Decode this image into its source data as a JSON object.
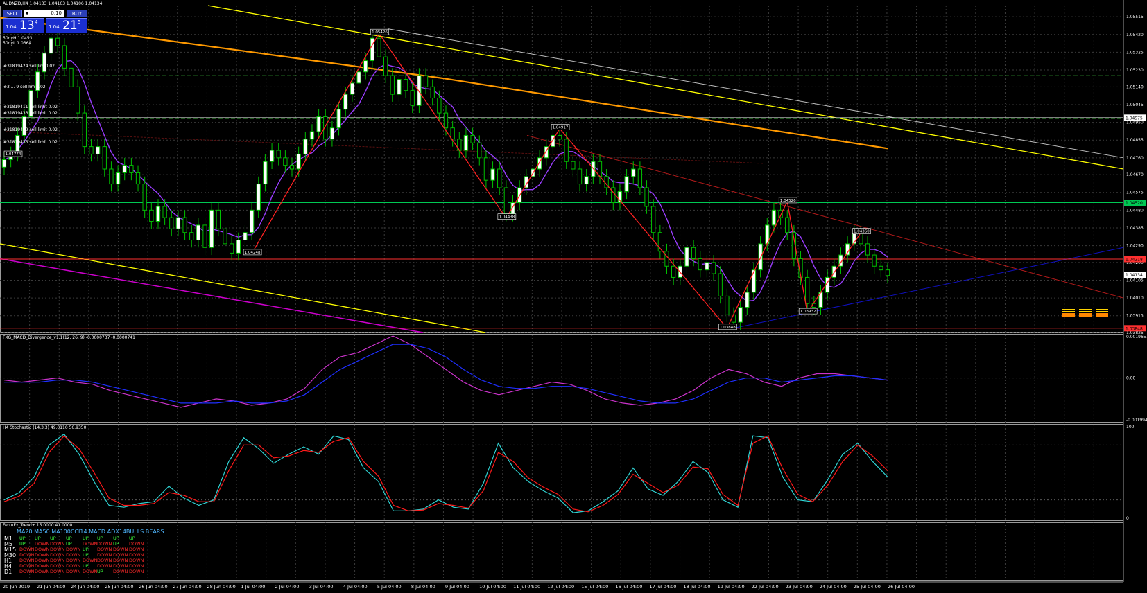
{
  "window": {
    "symbol_header": "AUDNZD,H4  1.04133 1.04163 1.04106 1.04134"
  },
  "trade_panel": {
    "sell_label": "SELL",
    "buy_label": "BUY",
    "lot_value": "0.10",
    "bid_prefix": "1.04",
    "bid_big": "13",
    "bid_sup": "4",
    "ask_prefix": "1.04",
    "ask_big": "21",
    "ask_sup": "5"
  },
  "top_left_labels": [
    "50dyH 1.0453",
    "50dyL 1.0364"
  ],
  "order_labels": [
    "#31819424 sell lim 0.02",
    "#3 ... 9 sell lim 0.02",
    "#31819411 sell limit 0.02",
    "#31819433 sell limit 0.02",
    "#31819409 sell limit 0.02",
    "#31819435 sell limit 0.02"
  ],
  "colors": {
    "bg": "#000000",
    "grid": "#3a3a3a",
    "bull": "#ffffff",
    "bear": "#00c000",
    "ma_orange": "#ff9900",
    "trend_yellow": "#ffff00",
    "trend_gray": "#bfbfbf",
    "zigzag": "#ff2222",
    "ma_purple": "#9a3dff",
    "channel_magenta": "#cc00cc",
    "macd_blue": "#1f2fff",
    "macd_magenta": "#cc33cc",
    "stoch_cyan": "#2fd3d3",
    "stoch_red": "#ff1a1a",
    "green_line": "#00c853",
    "current_price_red": "#ff3030",
    "blue_support": "#1010c0"
  },
  "chart_data": [
    {
      "type": "candlestick",
      "panel": "main",
      "title": "AUDNZD,H4",
      "ylim": [
        1.03825,
        1.05575
      ],
      "price_axis_ticks": [
        "1.05515",
        "1.05420",
        "1.05325",
        "1.05230",
        "1.05140",
        "1.05045",
        "1.04950",
        "1.04855",
        "1.04760",
        "1.04670",
        "1.04575",
        "1.04480",
        "1.04385",
        "1.04290",
        "1.04200",
        "1.04105",
        "1.04010",
        "1.03915",
        "1.03825"
      ],
      "price_tags": [
        {
          "value": 1.04975,
          "label": "1.04975",
          "color": "#ffffff"
        },
        {
          "value": 1.0452,
          "label": "1.04520",
          "color": "#00c853"
        },
        {
          "value": 1.04218,
          "label": "1.04218",
          "color": "#ff3030"
        },
        {
          "value": 1.04134,
          "label": "1.04134",
          "color": "#ffffff"
        },
        {
          "value": 1.03848,
          "label": "1.03848",
          "color": "#ff3030"
        }
      ],
      "swing_labels": [
        {
          "label": "1.04774",
          "x": 0.5,
          "y": 1.04774
        },
        {
          "label": "1.05426",
          "x": 56,
          "y": 1.05426
        },
        {
          "label": "1.04248",
          "x": 37,
          "y": 1.04248
        },
        {
          "label": "1.04917",
          "x": 83,
          "y": 1.04917
        },
        {
          "label": "1.04438",
          "x": 75,
          "y": 1.04438
        },
        {
          "label": "1.04526",
          "x": 117,
          "y": 1.04526
        },
        {
          "label": "1.03848",
          "x": 108,
          "y": 1.03848
        },
        {
          "label": "1.04360",
          "x": 128,
          "y": 1.0436
        },
        {
          "label": "1.03932",
          "x": 120,
          "y": 1.03932
        }
      ],
      "close_series": [
        1.0475,
        1.0478,
        1.0488,
        1.0498,
        1.0512,
        1.0522,
        1.0532,
        1.054,
        1.0536,
        1.0524,
        1.0514,
        1.05,
        1.0482,
        1.0478,
        1.0482,
        1.047,
        1.0462,
        1.0468,
        1.0472,
        1.0468,
        1.0462,
        1.0448,
        1.0442,
        1.045,
        1.0444,
        1.0438,
        1.0444,
        1.0436,
        1.0432,
        1.044,
        1.0428,
        1.0448,
        1.0438,
        1.043,
        1.0425,
        1.0432,
        1.0436,
        1.0448,
        1.0462,
        1.0474,
        1.048,
        1.0476,
        1.0472,
        1.047,
        1.0478,
        1.0486,
        1.049,
        1.0498,
        1.0486,
        1.0492,
        1.0502,
        1.051,
        1.0516,
        1.0522,
        1.0528,
        1.054,
        1.053,
        1.052,
        1.051,
        1.0518,
        1.0512,
        1.0504,
        1.052,
        1.0514,
        1.0508,
        1.05,
        1.0492,
        1.0486,
        1.048,
        1.0488,
        1.0484,
        1.0476,
        1.0464,
        1.047,
        1.046,
        1.0446,
        1.0452,
        1.046,
        1.0466,
        1.047,
        1.0476,
        1.0482,
        1.0488,
        1.0486,
        1.0474,
        1.047,
        1.0462,
        1.0466,
        1.0474,
        1.0466,
        1.046,
        1.0452,
        1.0458,
        1.0466,
        1.047,
        1.046,
        1.045,
        1.0436,
        1.0426,
        1.0418,
        1.0412,
        1.0418,
        1.0428,
        1.0422,
        1.0416,
        1.042,
        1.0414,
        1.0402,
        1.0392,
        1.0388,
        1.0396,
        1.0404,
        1.0416,
        1.043,
        1.044,
        1.0448,
        1.0444,
        1.0436,
        1.0422,
        1.0412,
        1.0398,
        1.0396,
        1.0404,
        1.0412,
        1.0418,
        1.0424,
        1.043,
        1.0436,
        1.043,
        1.0424,
        1.0418,
        1.0416,
        1.0413
      ]
    },
    {
      "type": "line",
      "panel": "macd",
      "title": "FXG_MACD_Divergence_v1.1(12, 26, 9) -0.0000737 -0.0000741",
      "ylim": [
        -0.0019944,
        0.0019657
      ],
      "tick_labels": [
        "0.0019657",
        "0.00",
        "-0.0019944"
      ],
      "series": [
        {
          "values": [
            -0.0001,
            -0.0002,
            -0.0001,
            0.0,
            -0.0002,
            -0.0003,
            -0.0006,
            -0.0008,
            -0.001,
            -0.0012,
            -0.0014,
            -0.0012,
            -0.001,
            -0.0011,
            -0.0013,
            -0.0012,
            -0.001,
            -0.0005,
            0.0004,
            0.001,
            0.0012,
            0.0016,
            0.002,
            0.0016,
            0.001,
            0.0004,
            -0.0002,
            -0.0006,
            -0.0008,
            -0.0006,
            -0.0004,
            -0.0002,
            -0.0003,
            -0.0006,
            -0.001,
            -0.0012,
            -0.0013,
            -0.0012,
            -0.001,
            -0.0006,
            0.0,
            0.0004,
            0.0002,
            -0.0002,
            -0.0004,
            0.0,
            0.0002,
            0.0002,
            0.0001,
            0.0,
            -0.0001
          ]
        },
        {
          "values": [
            -0.0002,
            -0.0002,
            -0.0002,
            -0.0001,
            -0.0001,
            -0.0002,
            -0.0004,
            -0.0006,
            -0.0008,
            -0.001,
            -0.0012,
            -0.0012,
            -0.0012,
            -0.0011,
            -0.0012,
            -0.0012,
            -0.0011,
            -0.0008,
            -0.0002,
            0.0004,
            0.0008,
            0.0012,
            0.0016,
            0.0016,
            0.0014,
            0.001,
            0.0004,
            -0.0001,
            -0.0004,
            -0.0005,
            -0.0005,
            -0.0004,
            -0.0004,
            -0.0005,
            -0.0007,
            -0.0009,
            -0.0011,
            -0.0012,
            -0.0012,
            -0.001,
            -0.0006,
            -0.0002,
            0.0,
            0.0,
            -0.0002,
            -0.0001,
            0.0,
            0.0001,
            0.0001,
            0.0,
            -0.0001
          ]
        }
      ]
    },
    {
      "type": "line",
      "panel": "stochastic",
      "title": "H4 Stochastic (14,3,3) 49.0110 56.9350",
      "ylim": [
        0,
        100
      ],
      "tick_labels": [
        "100",
        "0"
      ],
      "series": [
        {
          "values": [
            20,
            28,
            45,
            80,
            92,
            70,
            40,
            14,
            12,
            16,
            18,
            35,
            22,
            14,
            20,
            62,
            88,
            76,
            60,
            70,
            78,
            70,
            90,
            86,
            55,
            40,
            8,
            8,
            10,
            20,
            12,
            10,
            38,
            82,
            55,
            40,
            30,
            22,
            6,
            8,
            18,
            30,
            55,
            32,
            25,
            40,
            62,
            50,
            20,
            12,
            90,
            88,
            45,
            20,
            18,
            42,
            70,
            82,
            62,
            45
          ]
        },
        {
          "values": [
            18,
            24,
            38,
            72,
            90,
            76,
            50,
            22,
            14,
            14,
            16,
            28,
            25,
            18,
            18,
            52,
            80,
            80,
            66,
            68,
            74,
            72,
            84,
            88,
            62,
            46,
            14,
            8,
            9,
            16,
            14,
            11,
            30,
            72,
            62,
            44,
            34,
            26,
            10,
            7,
            14,
            26,
            48,
            38,
            28,
            36,
            56,
            54,
            26,
            14,
            82,
            90,
            54,
            26,
            18,
            36,
            62,
            80,
            68,
            52
          ]
        }
      ]
    },
    {
      "type": "table",
      "panel": "trend",
      "title": "FerruFx_Trend+ 15.0000 41.0000",
      "columns": [
        "MA20",
        "MA50",
        "MA100",
        "CCI14",
        "MACD",
        "ADX14",
        "BULLS",
        "BEARS"
      ],
      "header_text": "MA20 MA50 MA100CCI14 MACD ADX14BULLS BEARS",
      "rows": [
        {
          "tf": "M1",
          "cells": [
            "UP",
            "UP",
            "UP",
            "UP",
            "UP",
            "UP",
            "UP",
            "UP"
          ]
        },
        {
          "tf": "M5",
          "cells": [
            "UP",
            "DOWN",
            "DOWN",
            "UP",
            "DOWN",
            "DOWN",
            "UP",
            "DOWN"
          ]
        },
        {
          "tf": "M15",
          "cells": [
            "DOWN",
            "DOWN",
            "DOWN",
            "DOWN",
            "UP",
            "DOWN",
            "DOWN",
            "DOWN"
          ]
        },
        {
          "tf": "M30",
          "cells": [
            "DOWN",
            "DOWN",
            "DOWN",
            "DOWN",
            "UP",
            "DOWN",
            "DOWN",
            "DOWN"
          ]
        },
        {
          "tf": "H1",
          "cells": [
            "DOWN",
            "DOWN",
            "DOWN",
            "DOWN",
            "DOWN",
            "DOWN",
            "DOWN",
            "DOWN"
          ]
        },
        {
          "tf": "H4",
          "cells": [
            "DOWN",
            "DOWN",
            "DOWN",
            "DOWN",
            "UP",
            "DOWN",
            "DOWN",
            "DOWN"
          ]
        },
        {
          "tf": "D1",
          "cells": [
            "DOWN",
            "DOWN",
            "DOWN",
            "DOWN",
            "DOWN",
            "UP",
            "DOWN",
            "DOWN"
          ]
        }
      ]
    }
  ],
  "time_axis": [
    "20 Jun 2019",
    "21 Jun 04:00",
    "24 Jun 04:00",
    "25 Jun 04:00",
    "26 Jun 04:00",
    "27 Jun 04:00",
    "28 Jun 04:00",
    "1 Jul 04:00",
    "2 Jul 04:00",
    "3 Jul 04:00",
    "4 Jul 04:00",
    "5 Jul 04:00",
    "8 Jul 04:00",
    "9 Jul 04:00",
    "10 Jul 04:00",
    "11 Jul 04:00",
    "12 Jul 04:00",
    "15 Jul 04:00",
    "16 Jul 04:00",
    "17 Jul 04:00",
    "18 Jul 04:00",
    "19 Jul 04:00",
    "22 Jul 04:00",
    "23 Jul 04:00",
    "24 Jul 04:00",
    "25 Jul 04:00",
    "26 Jul 04:00"
  ]
}
